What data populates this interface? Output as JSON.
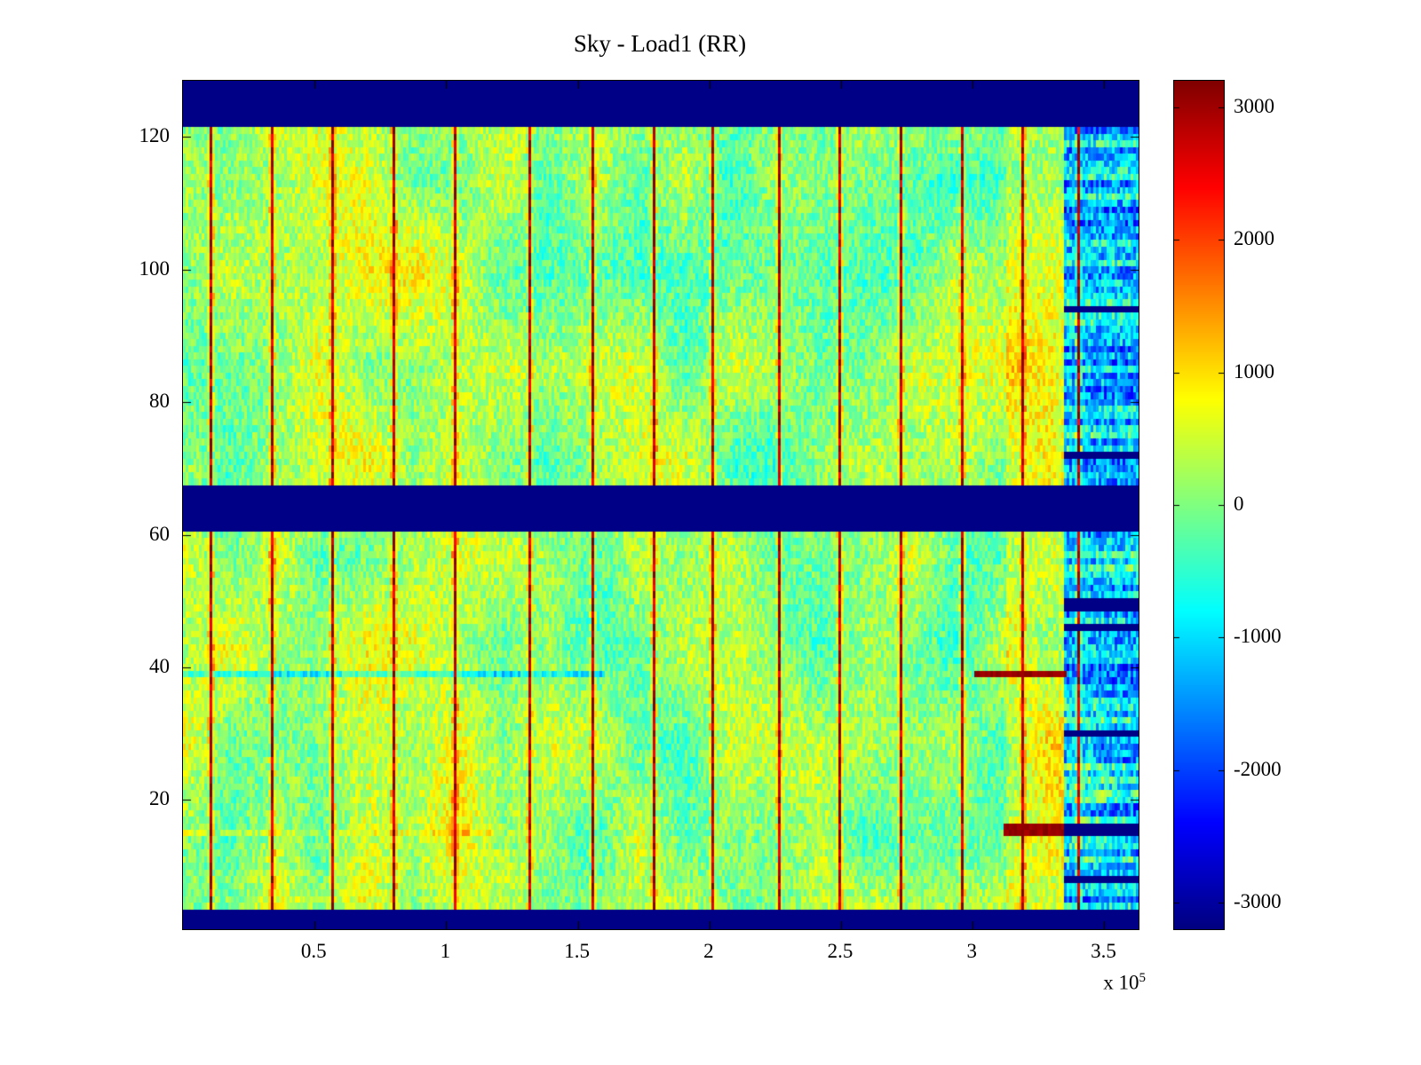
{
  "chart_data": {
    "type": "heatmap",
    "title": "Sky - Load1 (RR)",
    "colormap": "jet",
    "grid": "off",
    "legend": "none",
    "xlim": [
      0,
      363000
    ],
    "ylim": [
      0.5,
      128.5
    ],
    "clim": [
      -3200,
      3200
    ],
    "x_ticks": [
      50000,
      100000,
      150000,
      200000,
      250000,
      300000,
      350000
    ],
    "x_tick_labels": [
      "0.5",
      "1",
      "1.5",
      "2",
      "2.5",
      "3",
      "3.5"
    ],
    "x_offset_base": "x 10",
    "x_offset_exp": "5",
    "y_ticks": [
      20,
      40,
      60,
      80,
      100,
      120
    ],
    "y_tick_labels": [
      "20",
      "40",
      "60",
      "80",
      "100",
      "120"
    ],
    "colorbar_ticks": [
      3000,
      2000,
      1000,
      0,
      -1000,
      -2000,
      -3000
    ],
    "colorbar_tick_labels": [
      "3000",
      "2000",
      "1000",
      "0",
      "-1000",
      "-2000",
      "-3000"
    ],
    "grid_size": {
      "nx": 360,
      "ny": 128
    },
    "features": {
      "noise_seed": 1337,
      "navy_bands_rows": [
        [
          122,
          128
        ],
        [
          61,
          67
        ],
        [
          1,
          3
        ]
      ],
      "vertical_streaks_x": [
        10000,
        33500,
        56500,
        79500,
        103000,
        131500,
        155500,
        178500,
        201000,
        225500,
        249500,
        272500,
        295500,
        318500,
        340000
      ],
      "right_navy_region_x_start": 335000,
      "warm_zone_x": [
        313000,
        335000
      ],
      "right_navy_rows": [
        8,
        15,
        16,
        30,
        46,
        49,
        50,
        72,
        94
      ],
      "red_row_segments": [
        {
          "rows": [
            39
          ],
          "x0": 300000,
          "x1": 336000
        },
        {
          "rows": [
            15,
            16
          ],
          "x0": 312000,
          "x1": 337000
        }
      ],
      "cyan_row": {
        "row": 39,
        "x_max": 160000
      },
      "warm_row": {
        "row": 15,
        "x_max": 120000
      }
    }
  }
}
